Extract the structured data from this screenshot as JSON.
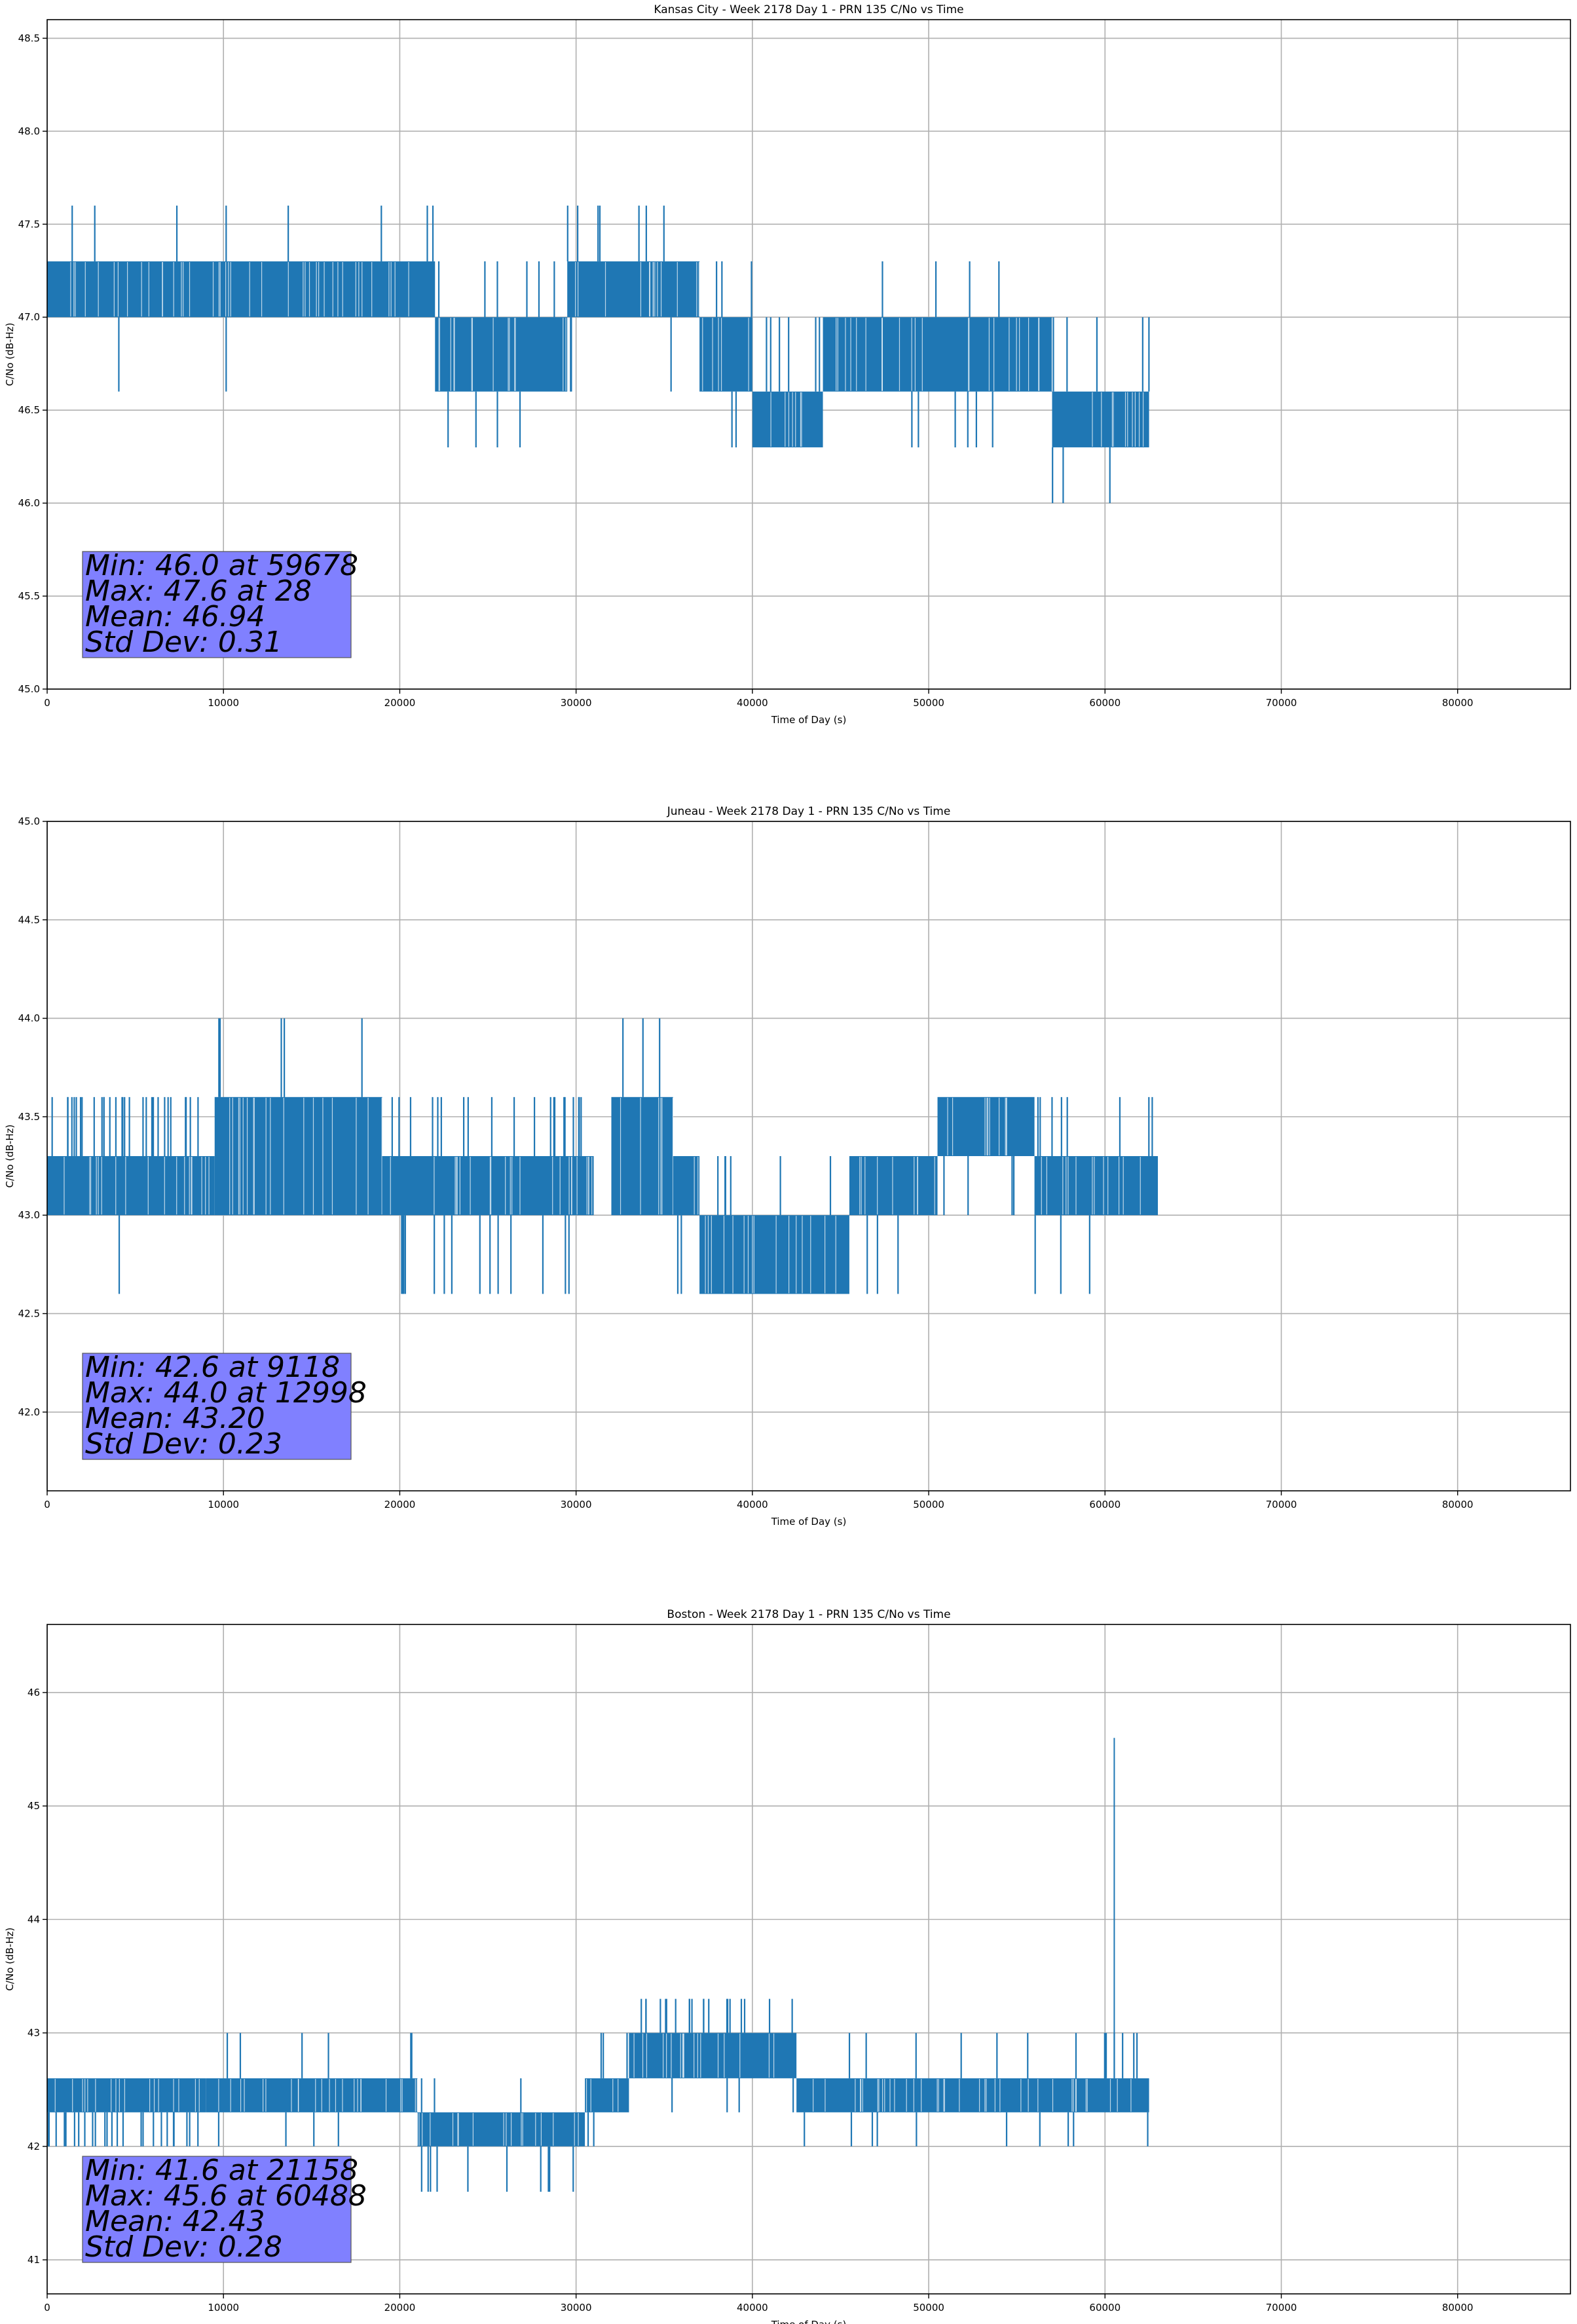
{
  "chart_data": [
    {
      "type": "line",
      "title": "Kansas City - Week 2178 Day 1 - PRN 135 C/No vs Time",
      "xlabel": "Time of Day (s)",
      "ylabel": "C/No (dB-Hz)",
      "xlim": [
        0,
        86400
      ],
      "ylim": [
        45.0,
        48.6
      ],
      "xticks": [
        0,
        10000,
        20000,
        30000,
        40000,
        50000,
        60000,
        70000,
        80000
      ],
      "xtick_labels": [
        "0",
        "10000",
        "20000",
        "30000",
        "40000",
        "50000",
        "60000",
        "70000",
        "80000"
      ],
      "yticks": [
        45.0,
        45.5,
        46.0,
        46.5,
        47.0,
        47.5,
        48.0,
        48.5
      ],
      "ytick_labels": [
        "45.0",
        "45.5",
        "46.0",
        "46.5",
        "47.0",
        "47.5",
        "48.0",
        "48.5"
      ],
      "grid": true,
      "color": "#1f77b4",
      "stats": [
        "Min: 46.0 at 59678",
        "Max: 47.6 at 28",
        "Mean: 46.94",
        "Std Dev: 0.31"
      ],
      "stats_box_color": "#8080ff",
      "segments": [
        {
          "x": [
            0,
            22000
          ],
          "band": [
            47.0,
            47.3
          ],
          "spikes_up": [
            47.6,
            8
          ],
          "spikes_down": [
            46.6,
            2
          ]
        },
        {
          "x": [
            22000,
            29500
          ],
          "band": [
            46.6,
            47.0
          ],
          "spikes_up": [
            47.3,
            6
          ],
          "spikes_down": [
            46.3,
            4
          ]
        },
        {
          "x": [
            29500,
            37000
          ],
          "band": [
            47.0,
            47.3
          ],
          "spikes_up": [
            47.6,
            7
          ],
          "spikes_down": [
            46.6,
            3
          ]
        },
        {
          "x": [
            37000,
            40000
          ],
          "band": [
            46.6,
            47.0
          ],
          "spikes_up": [
            47.3,
            3
          ],
          "spikes_down": [
            46.3,
            2
          ]
        },
        {
          "x": [
            40000,
            44000
          ],
          "band": [
            46.3,
            46.6
          ],
          "spikes_up": [
            47.0,
            6
          ],
          "spikes_down": [
            46.3,
            1
          ]
        },
        {
          "x": [
            44000,
            57000
          ],
          "band": [
            46.6,
            47.0
          ],
          "spikes_up": [
            47.3,
            4
          ],
          "spikes_down": [
            46.3,
            6
          ]
        },
        {
          "x": [
            57000,
            62500
          ],
          "band": [
            46.3,
            46.6
          ],
          "spikes_up": [
            47.0,
            5
          ],
          "spikes_down": [
            46.0,
            3
          ]
        }
      ]
    },
    {
      "type": "line",
      "title": "Juneau - Week 2178 Day 1 - PRN 135 C/No vs Time",
      "xlabel": "Time of Day (s)",
      "ylabel": "C/No (dB-Hz)",
      "xlim": [
        0,
        86400
      ],
      "ylim": [
        41.6,
        45.0
      ],
      "xticks": [
        0,
        10000,
        20000,
        30000,
        40000,
        50000,
        60000,
        70000,
        80000
      ],
      "xtick_labels": [
        "0",
        "10000",
        "20000",
        "30000",
        "40000",
        "50000",
        "60000",
        "70000",
        "80000"
      ],
      "yticks": [
        42.0,
        42.5,
        43.0,
        43.5,
        44.0,
        44.5,
        45.0
      ],
      "ytick_labels": [
        "42.0",
        "42.5",
        "43.0",
        "43.5",
        "44.0",
        "44.5",
        "45.0"
      ],
      "grid": true,
      "color": "#1f77b4",
      "stats": [
        "Min: 42.6 at 9118",
        "Max: 44.0 at 12998",
        "Mean: 43.20",
        "Std Dev: 0.23"
      ],
      "stats_box_color": "#8080ff",
      "segments": [
        {
          "x": [
            0,
            9500
          ],
          "band": [
            43.0,
            43.3
          ],
          "spikes_up": [
            43.6,
            30
          ],
          "spikes_down": [
            42.6,
            1
          ]
        },
        {
          "x": [
            9500,
            19000
          ],
          "band": [
            43.0,
            43.6
          ],
          "spikes_up": [
            44.0,
            5
          ],
          "spikes_down": [
            43.0,
            1
          ]
        },
        {
          "x": [
            19000,
            31000
          ],
          "band": [
            43.0,
            43.3
          ],
          "spikes_up": [
            43.6,
            20
          ],
          "spikes_down": [
            42.6,
            14
          ]
        },
        {
          "x": [
            32000,
            35500
          ],
          "band": [
            43.0,
            43.6
          ],
          "spikes_up": [
            44.0,
            3
          ],
          "spikes_down": [
            43.0,
            1
          ]
        },
        {
          "x": [
            35500,
            37000
          ],
          "band": [
            43.0,
            43.3
          ],
          "spikes_up": [
            43.3,
            1
          ],
          "spikes_down": [
            42.6,
            2
          ]
        },
        {
          "x": [
            37000,
            45500
          ],
          "band": [
            42.6,
            43.0
          ],
          "spikes_up": [
            43.3,
            6
          ],
          "spikes_down": [
            42.6,
            1
          ]
        },
        {
          "x": [
            45500,
            50500
          ],
          "band": [
            43.0,
            43.3
          ],
          "spikes_up": [
            43.3,
            1
          ],
          "spikes_down": [
            42.6,
            3
          ]
        },
        {
          "x": [
            50500,
            56000
          ],
          "band": [
            43.3,
            43.6
          ],
          "spikes_up": [
            43.6,
            1
          ],
          "spikes_down": [
            43.0,
            4
          ]
        },
        {
          "x": [
            56000,
            63000
          ],
          "band": [
            43.0,
            43.3
          ],
          "spikes_up": [
            43.6,
            8
          ],
          "spikes_down": [
            42.6,
            3
          ]
        }
      ]
    },
    {
      "type": "line",
      "title": "Boston - Week 2178 Day 1 - PRN 135 C/No vs Time",
      "xlabel": "Time of Day (s)",
      "ylabel": "C/No (dB-Hz)",
      "xlim": [
        0,
        86400
      ],
      "ylim": [
        40.7,
        46.6
      ],
      "xticks": [
        0,
        10000,
        20000,
        30000,
        40000,
        50000,
        60000,
        70000,
        80000
      ],
      "xtick_labels": [
        "0",
        "10000",
        "20000",
        "30000",
        "40000",
        "50000",
        "60000",
        "70000",
        "80000"
      ],
      "yticks": [
        41,
        42,
        43,
        44,
        45,
        46
      ],
      "ytick_labels": [
        "41",
        "42",
        "43",
        "44",
        "45",
        "46"
      ],
      "grid": true,
      "color": "#1f77b4",
      "stats": [
        "Min: 41.6 at 21158",
        "Max: 45.6 at 60488",
        "Mean: 42.43",
        "Std Dev: 0.28"
      ],
      "stats_box_color": "#8080ff",
      "segments": [
        {
          "x": [
            0,
            9000
          ],
          "band": [
            42.3,
            42.6
          ],
          "spikes_up": [
            42.6,
            1
          ],
          "spikes_down": [
            42.0,
            25
          ]
        },
        {
          "x": [
            9000,
            21000
          ],
          "band": [
            42.3,
            42.6
          ],
          "spikes_up": [
            43.0,
            6
          ],
          "spikes_down": [
            42.0,
            4
          ]
        },
        {
          "x": [
            21000,
            30500
          ],
          "band": [
            42.0,
            42.3
          ],
          "spikes_up": [
            42.6,
            3
          ],
          "spikes_down": [
            41.6,
            10
          ]
        },
        {
          "x": [
            30500,
            33000
          ],
          "band": [
            42.3,
            42.6
          ],
          "spikes_up": [
            43.0,
            3
          ],
          "spikes_down": [
            42.0,
            2
          ]
        },
        {
          "x": [
            33000,
            42500
          ],
          "band": [
            42.6,
            43.0
          ],
          "spikes_up": [
            43.3,
            20
          ],
          "spikes_down": [
            42.3,
            4
          ]
        },
        {
          "x": [
            42500,
            62500
          ],
          "band": [
            42.3,
            42.6
          ],
          "spikes_up": [
            43.0,
            14
          ],
          "spikes_down": [
            42.0,
            10
          ]
        },
        {
          "x": [
            60488,
            60520
          ],
          "band": [
            42.6,
            45.6
          ],
          "spikes_up": [
            45.6,
            1
          ],
          "spikes_down": [
            42.6,
            1
          ]
        }
      ]
    }
  ]
}
